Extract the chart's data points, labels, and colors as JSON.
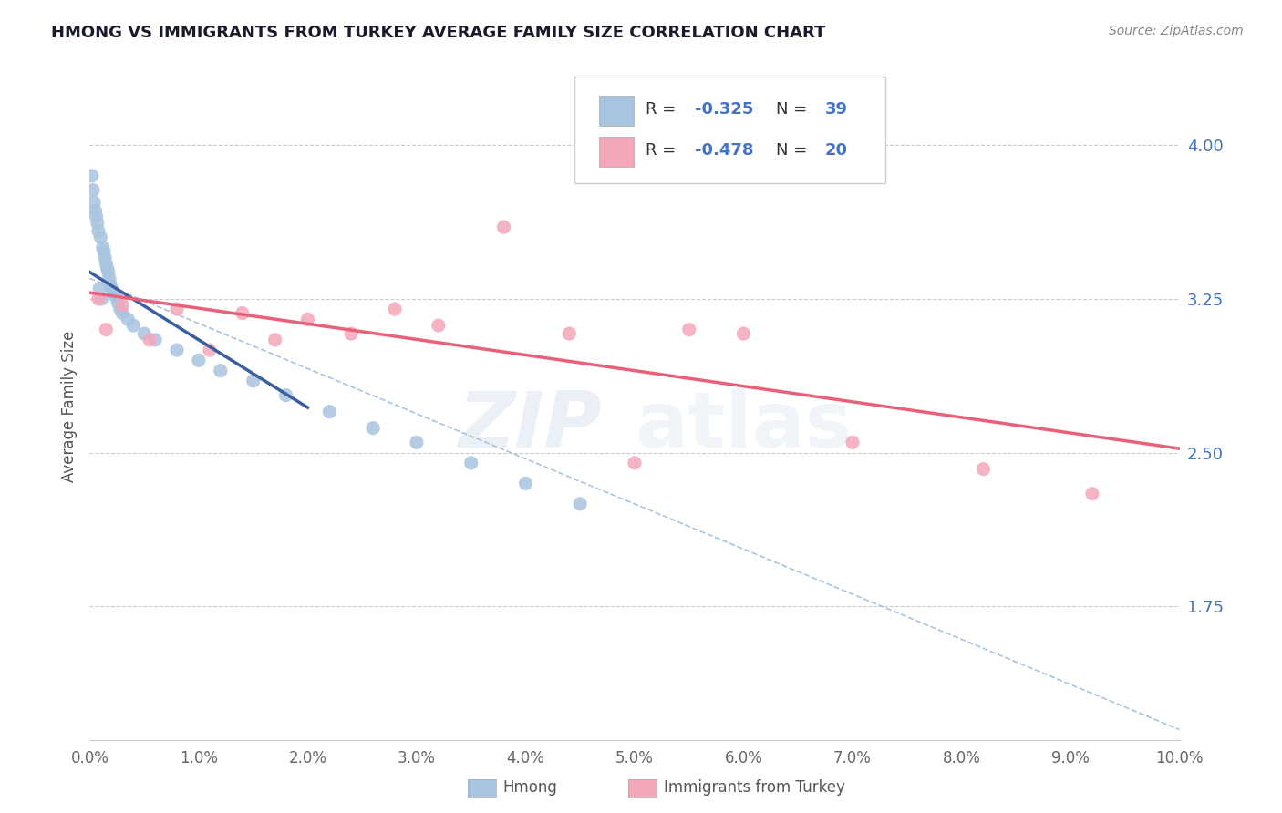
{
  "title": "HMONG VS IMMIGRANTS FROM TURKEY AVERAGE FAMILY SIZE CORRELATION CHART",
  "source": "Source: ZipAtlas.com",
  "ylabel": "Average Family Size",
  "yticks": [
    1.75,
    2.5,
    3.25,
    4.0
  ],
  "xmin": 0.0,
  "xmax": 10.0,
  "ymin": 1.1,
  "ymax": 4.35,
  "watermark_zip": "ZIP",
  "watermark_atlas": "atlas",
  "legend_r_hmong": "-0.325",
  "legend_n_hmong": "39",
  "legend_r_turkey": "-0.478",
  "legend_n_turkey": "20",
  "hmong_color": "#a8c4e0",
  "turkey_color": "#f4a7b9",
  "hmong_line_color": "#3a5fa0",
  "turkey_line_color": "#e8607a",
  "dashed_line_color": "#aac4e0",
  "background_color": "#ffffff",
  "hmong_x": [
    0.02,
    0.03,
    0.04,
    0.05,
    0.06,
    0.07,
    0.08,
    0.09,
    0.1,
    0.11,
    0.12,
    0.13,
    0.14,
    0.15,
    0.16,
    0.17,
    0.18,
    0.19,
    0.2,
    0.22,
    0.24,
    0.26,
    0.28,
    0.3,
    0.35,
    0.4,
    0.5,
    0.6,
    0.8,
    1.0,
    1.2,
    1.5,
    1.8,
    2.2,
    2.6,
    3.0,
    3.5,
    4.0,
    4.5
  ],
  "hmong_y": [
    3.85,
    3.78,
    3.72,
    3.68,
    3.65,
    3.62,
    3.58,
    3.3,
    3.55,
    3.25,
    3.5,
    3.48,
    3.45,
    3.42,
    3.4,
    3.38,
    3.35,
    3.32,
    3.3,
    3.28,
    3.26,
    3.23,
    3.2,
    3.18,
    3.15,
    3.12,
    3.08,
    3.05,
    3.0,
    2.95,
    2.9,
    2.85,
    2.78,
    2.7,
    2.62,
    2.55,
    2.45,
    2.35,
    2.25
  ],
  "turkey_x": [
    0.08,
    0.15,
    0.3,
    0.55,
    0.8,
    1.1,
    1.4,
    1.7,
    2.0,
    2.4,
    2.8,
    3.2,
    3.8,
    4.4,
    5.0,
    5.5,
    6.0,
    7.0,
    8.2,
    9.2
  ],
  "turkey_y": [
    3.25,
    3.1,
    3.22,
    3.05,
    3.2,
    3.0,
    3.18,
    3.05,
    3.15,
    3.08,
    3.2,
    3.12,
    3.6,
    3.08,
    2.45,
    3.1,
    3.08,
    2.55,
    2.42,
    2.3
  ],
  "hmong_line_x": [
    0.0,
    2.0
  ],
  "hmong_line_y": [
    3.38,
    2.72
  ],
  "turkey_line_x": [
    0.0,
    10.0
  ],
  "turkey_line_y": [
    3.28,
    2.52
  ],
  "dash_line_x": [
    0.0,
    10.0
  ],
  "dash_line_y": [
    3.35,
    1.15
  ]
}
